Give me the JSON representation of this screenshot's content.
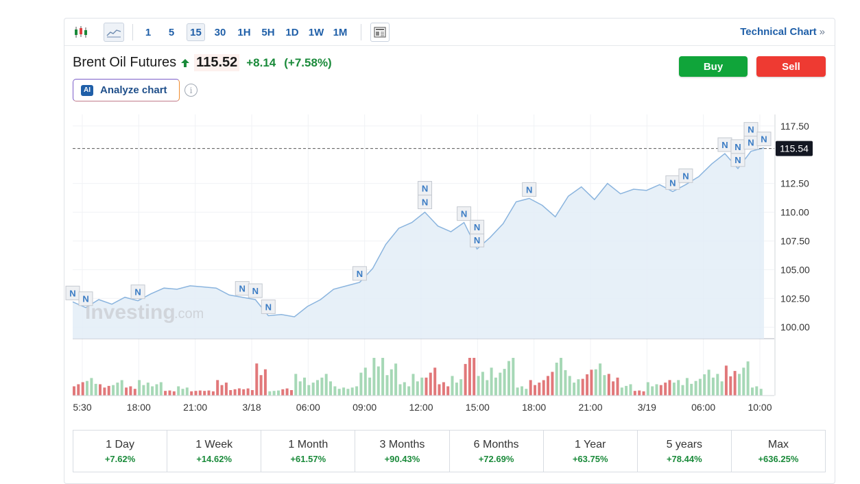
{
  "toolbar": {
    "timeframes": [
      "1",
      "5",
      "15",
      "30",
      "1H",
      "5H",
      "1D",
      "1W",
      "1M"
    ],
    "active_timeframe": "15",
    "technical_chart_label": "Technical Chart",
    "technical_chart_chevron": "»"
  },
  "instrument": {
    "name": "Brent Oil Futures",
    "price": "115.52",
    "change": "+8.14",
    "change_pct": "(+7.58%)",
    "direction": "up"
  },
  "actions": {
    "buy_label": "Buy",
    "sell_label": "Sell"
  },
  "analyze": {
    "badge": "AI",
    "label": "Analyze chart",
    "info_glyph": "i"
  },
  "chart": {
    "watermark_main": "Investing",
    "watermark_suffix": ".com",
    "news_marker": "N",
    "current_price_label": "115.54",
    "y_ticks": [
      "117.50",
      "112.50",
      "110.00",
      "107.50",
      "105.00",
      "102.50",
      "100.00"
    ],
    "x_ticks": [
      "5:30",
      "18:00",
      "21:00",
      "3/18",
      "06:00",
      "09:00",
      "12:00",
      "15:00",
      "18:00",
      "21:00",
      "3/19",
      "06:00",
      "10:00"
    ],
    "colors": {
      "line": "#8ab4de",
      "area": "#e3edf7",
      "vol_up": "#a6d8b6",
      "vol_down": "#e1787a",
      "price_tag": "#131722"
    }
  },
  "chart_data": {
    "type": "area",
    "series": [
      {
        "values": [
          102.2,
          101.7,
          102.4,
          102.0,
          102.6,
          102.3,
          102.9,
          103.4,
          103.3,
          103.6,
          103.5,
          103.4,
          102.8,
          102.6,
          102.4,
          101.0,
          101.1,
          100.9,
          101.8,
          102.4,
          103.3,
          103.6,
          103.9,
          105.1,
          107.2,
          108.6,
          109.1,
          110.0,
          108.8,
          108.3,
          109.1,
          106.8,
          107.8,
          109.0,
          110.9,
          111.2,
          110.6,
          109.6,
          111.4,
          112.2,
          111.1,
          112.5,
          111.6,
          112.0,
          111.9,
          112.4,
          111.8,
          112.4,
          113.1,
          114.2,
          115.1,
          113.8,
          115.3,
          115.6
        ]
      }
    ],
    "ylim": [
      99.0,
      118.5
    ],
    "last_value": 115.54
  },
  "periods": [
    {
      "label": "1 Day",
      "value": "+7.62%"
    },
    {
      "label": "1 Week",
      "value": "+14.62%"
    },
    {
      "label": "1 Month",
      "value": "+61.57%"
    },
    {
      "label": "3 Months",
      "value": "+90.43%"
    },
    {
      "label": "6 Months",
      "value": "+72.69%"
    },
    {
      "label": "1 Year",
      "value": "+63.75%"
    },
    {
      "label": "5 years",
      "value": "+78.44%"
    },
    {
      "label": "Max",
      "value": "+636.25%"
    }
  ]
}
